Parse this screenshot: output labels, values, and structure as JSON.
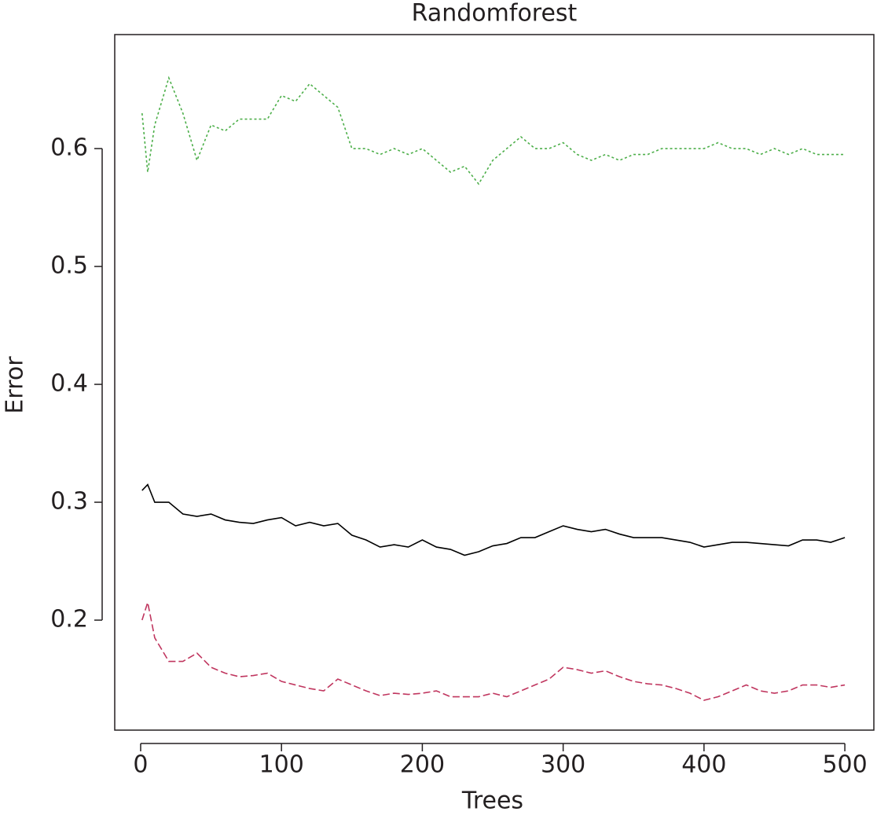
{
  "chart_data": {
    "type": "line",
    "title": "Randomforest",
    "x_label": "Trees",
    "y_label": "Error",
    "x": [
      1,
      5,
      10,
      20,
      30,
      40,
      50,
      60,
      70,
      80,
      90,
      100,
      110,
      120,
      130,
      140,
      150,
      160,
      170,
      180,
      190,
      200,
      210,
      220,
      230,
      240,
      250,
      260,
      270,
      280,
      290,
      300,
      310,
      320,
      330,
      340,
      350,
      360,
      370,
      380,
      390,
      400,
      410,
      420,
      430,
      440,
      450,
      460,
      470,
      480,
      490,
      500
    ],
    "series": [
      {
        "color": "#000000",
        "style": "solid",
        "values": [
          0.31,
          0.315,
          0.3,
          0.3,
          0.29,
          0.288,
          0.29,
          0.285,
          0.283,
          0.282,
          0.285,
          0.287,
          0.28,
          0.283,
          0.28,
          0.282,
          0.272,
          0.268,
          0.262,
          0.264,
          0.262,
          0.268,
          0.262,
          0.26,
          0.255,
          0.258,
          0.263,
          0.265,
          0.27,
          0.27,
          0.275,
          0.28,
          0.277,
          0.275,
          0.277,
          0.273,
          0.27,
          0.27,
          0.27,
          0.268,
          0.266,
          0.262,
          0.264,
          0.266,
          0.266,
          0.265,
          0.264,
          0.263,
          0.268,
          0.268,
          0.266,
          0.27
        ]
      },
      {
        "color": "#c0365f",
        "style": "dashed",
        "values": [
          0.2,
          0.215,
          0.185,
          0.165,
          0.165,
          0.172,
          0.16,
          0.155,
          0.152,
          0.153,
          0.155,
          0.148,
          0.145,
          0.142,
          0.14,
          0.15,
          0.145,
          0.14,
          0.136,
          0.138,
          0.137,
          0.138,
          0.14,
          0.135,
          0.135,
          0.135,
          0.138,
          0.135,
          0.14,
          0.145,
          0.15,
          0.16,
          0.158,
          0.155,
          0.157,
          0.152,
          0.148,
          0.146,
          0.145,
          0.142,
          0.138,
          0.132,
          0.135,
          0.14,
          0.145,
          0.14,
          0.138,
          0.14,
          0.145,
          0.145,
          0.143,
          0.145
        ]
      },
      {
        "color": "#4daf4a",
        "style": "dotted",
        "values": [
          0.63,
          0.58,
          0.62,
          0.66,
          0.63,
          0.59,
          0.62,
          0.615,
          0.625,
          0.625,
          0.625,
          0.645,
          0.64,
          0.655,
          0.645,
          0.635,
          0.6,
          0.6,
          0.595,
          0.6,
          0.595,
          0.6,
          0.59,
          0.58,
          0.585,
          0.57,
          0.59,
          0.6,
          0.61,
          0.6,
          0.6,
          0.605,
          0.595,
          0.59,
          0.595,
          0.59,
          0.595,
          0.595,
          0.6,
          0.6,
          0.6,
          0.6,
          0.605,
          0.6,
          0.6,
          0.595,
          0.6,
          0.595,
          0.6,
          0.595,
          0.595,
          0.595
        ]
      }
    ],
    "xlim": [
      -18.4,
      520.6
    ],
    "ylim": [
      0.1067,
      0.6967
    ],
    "xticks": [
      0,
      100,
      200,
      300,
      400,
      500
    ],
    "yticks": [
      0.2,
      0.3,
      0.4,
      0.5,
      0.6
    ]
  }
}
